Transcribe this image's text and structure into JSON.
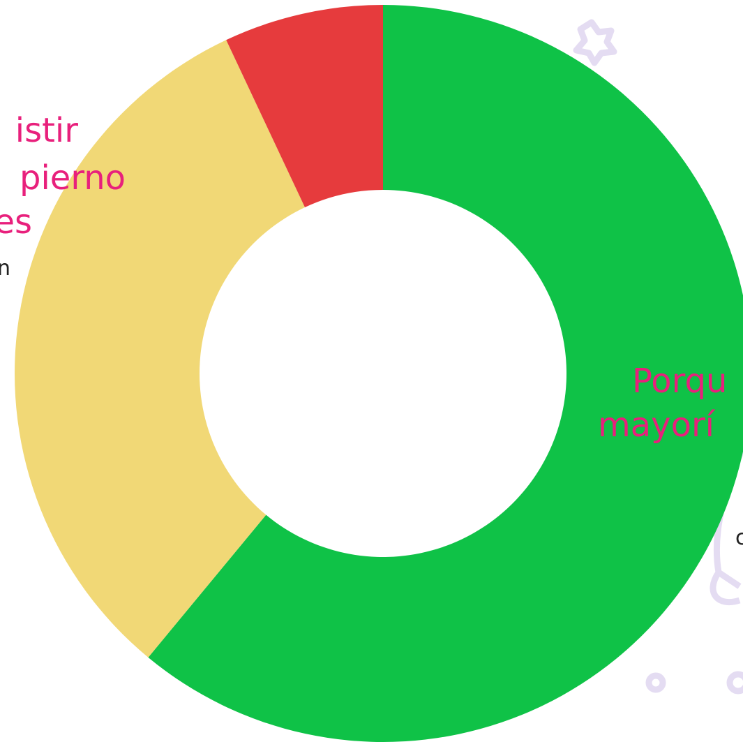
{
  "chart_data": {
    "type": "pie",
    "donut": true,
    "categories": [
      null,
      null,
      null
    ],
    "values": [
      61,
      32,
      7
    ],
    "colors": [
      "#0fc247",
      "#f1d876",
      "#e63b3d"
    ],
    "annotations": [
      {
        "lines": [
          "istir",
          "pierno",
          "es"
        ],
        "color": "#e8207c"
      },
      {
        "lines": [
          "n"
        ],
        "color": "#222222"
      },
      {
        "lines": [
          "Porqu",
          "mayorí"
        ],
        "color": "#e8207c"
      },
      {
        "lines": [
          "c"
        ],
        "color": "#222222"
      }
    ]
  }
}
